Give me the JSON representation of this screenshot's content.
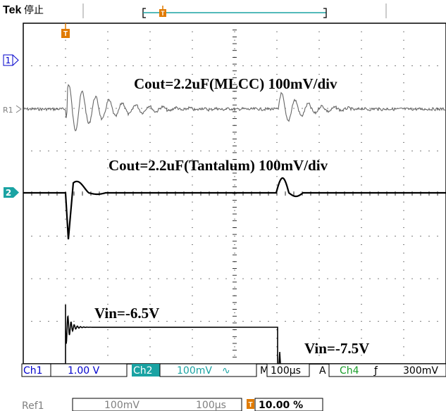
{
  "header": {
    "brand": "Tek",
    "run_state": "停止",
    "trigger_marker": "T"
  },
  "markers": {
    "ch1": "1",
    "ref1": "R1",
    "ch2": "2",
    "trigger": "T"
  },
  "annotations": {
    "mlcc": "Cout=2.2uF(MLCC) 100mV/div",
    "tantalum": "Cout=2.2uF(Tantalum) 100mV/div",
    "vin_low": "Vin=-6.5V",
    "vin_high": "Vin=-7.5V"
  },
  "status_bar": {
    "ch1_label": "Ch1",
    "ch1_scale": "1.00 V",
    "ch2_label": "Ch2",
    "ch2_scale": "100mV",
    "ch2_coupling_icon": "bandwidth-limit-icon",
    "ch2_coupling_glyph": "∿",
    "m_label": "M",
    "timebase": "100µs",
    "a_label": "A",
    "trig_source": "Ch4",
    "trig_slope_glyph": "ƒ",
    "trig_level": "300mV"
  },
  "ref_bar": {
    "ref_label": "Ref1",
    "ref_scale": "100mV",
    "ref_time": "100µs",
    "trig_pos_marker": "T",
    "trig_position": "10.00 %"
  },
  "colors": {
    "grid": "#000000",
    "ch_label_bg": "#1aa3a3",
    "ch_label_text": "#0000cc",
    "trigger_orange": "#e07a00",
    "ref_gray": "#7f7f7f"
  }
}
